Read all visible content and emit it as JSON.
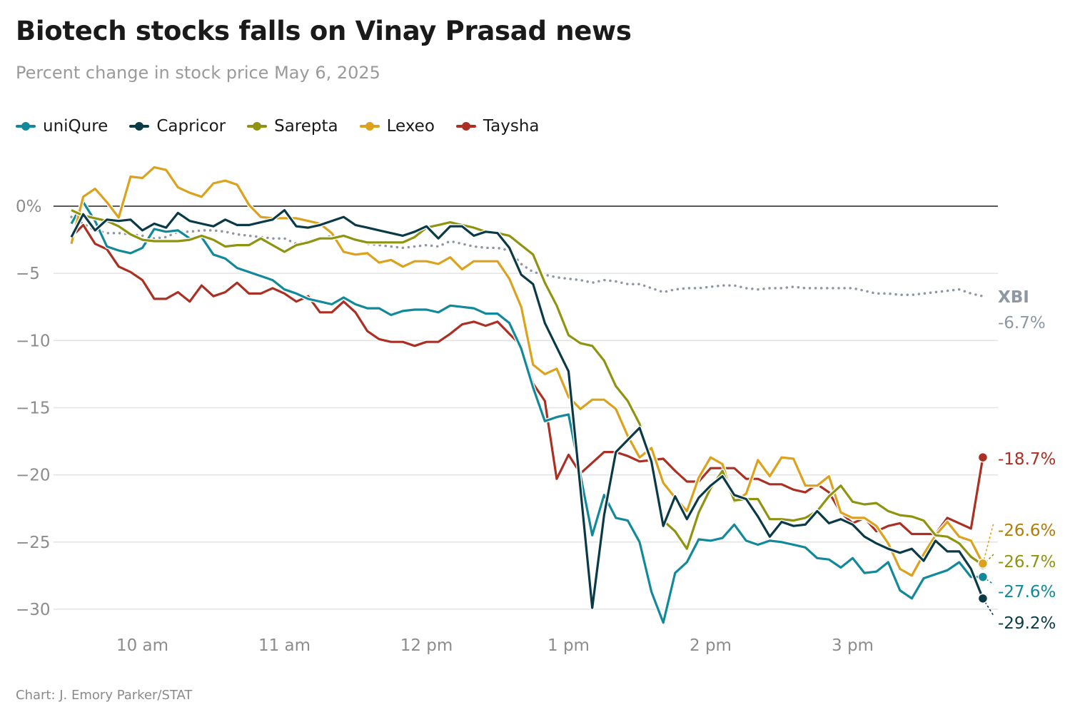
{
  "header": {
    "title": "Biotech stocks falls on Vinay Prasad news",
    "subtitle": "Percent change in stock price May 6, 2025"
  },
  "footer": {
    "credit": "Chart: J. Emory Parker/STAT"
  },
  "chart_data": {
    "type": "line",
    "title": "Biotech stocks falls on Vinay Prasad news",
    "subtitle": "Percent change in stock price May 6, 2025",
    "xlabel": "",
    "ylabel": "",
    "ylim": [
      -31,
      3
    ],
    "grid": "horizontal",
    "legend_placement": "top-left",
    "x_ticks": [
      {
        "time": "10:00",
        "label": "10 am"
      },
      {
        "time": "11:00",
        "label": "11 am"
      },
      {
        "time": "12:00",
        "label": "12 pm"
      },
      {
        "time": "13:00",
        "label": "1 pm"
      },
      {
        "time": "14:00",
        "label": "2 pm"
      },
      {
        "time": "15:00",
        "label": "3 pm"
      }
    ],
    "y_ticks": [
      {
        "value": 0,
        "label": "0%"
      },
      {
        "value": -5,
        "label": "−5"
      },
      {
        "value": -10,
        "label": "−10"
      },
      {
        "value": -15,
        "label": "−15"
      },
      {
        "value": -20,
        "label": "−20"
      },
      {
        "value": -25,
        "label": "−25"
      },
      {
        "value": -30,
        "label": "−30"
      }
    ],
    "x": [
      "9:30",
      "9:35",
      "9:40",
      "9:45",
      "9:50",
      "9:55",
      "10:00",
      "10:05",
      "10:10",
      "10:15",
      "10:20",
      "10:25",
      "10:30",
      "10:35",
      "10:40",
      "10:45",
      "10:50",
      "10:55",
      "11:00",
      "11:05",
      "11:10",
      "11:15",
      "11:20",
      "11:25",
      "11:30",
      "11:35",
      "11:40",
      "11:45",
      "11:50",
      "11:55",
      "12:00",
      "12:05",
      "12:10",
      "12:15",
      "12:20",
      "12:25",
      "12:30",
      "12:35",
      "12:40",
      "12:45",
      "12:50",
      "12:55",
      "13:00",
      "13:05",
      "13:10",
      "13:15",
      "13:20",
      "13:25",
      "13:30",
      "13:35",
      "13:40",
      "13:45",
      "13:50",
      "13:55",
      "14:00",
      "14:05",
      "14:10",
      "14:15",
      "14:20",
      "14:25",
      "14:30",
      "14:35",
      "14:40",
      "14:45",
      "14:50",
      "14:55",
      "15:00",
      "15:05",
      "15:10",
      "15:15",
      "15:20",
      "15:25",
      "15:30",
      "15:35",
      "15:40",
      "15:45",
      "15:50",
      "15:55"
    ],
    "series": [
      {
        "name": "XBI",
        "color": "#8e97a3",
        "style": "dotted",
        "in_legend": false,
        "end_label": "-6.7%",
        "values": [
          -0.8,
          -1.3,
          -1.8,
          -2.0,
          -2.0,
          -2.1,
          -2.2,
          -2.4,
          -2.3,
          -1.9,
          -1.9,
          -1.8,
          -1.8,
          -1.9,
          -2.1,
          -2.2,
          -2.3,
          -2.4,
          -2.4,
          -2.8,
          -2.6,
          -2.5,
          -2.2,
          -2.3,
          -2.5,
          -2.8,
          -2.9,
          -3.0,
          -3.1,
          -3.0,
          -2.9,
          -3.0,
          -2.6,
          -2.8,
          -3.0,
          -3.1,
          -3.1,
          -3.3,
          -4.3,
          -4.9,
          -5.1,
          -5.3,
          -5.4,
          -5.5,
          -5.7,
          -5.5,
          -5.6,
          -5.8,
          -5.8,
          -6.1,
          -6.4,
          -6.2,
          -6.1,
          -6.1,
          -6.0,
          -5.9,
          -5.9,
          -6.1,
          -6.2,
          -6.1,
          -6.1,
          -6.0,
          -6.1,
          -6.1,
          -6.1,
          -6.1,
          -6.1,
          -6.3,
          -6.5,
          -6.5,
          -6.6,
          -6.6,
          -6.5,
          -6.4,
          -6.3,
          -6.2,
          -6.5,
          -6.7
        ]
      },
      {
        "name": "uniQure",
        "color": "#12899b",
        "in_legend": true,
        "end_label": "-27.6%",
        "values": [
          -1.3,
          0.3,
          -1.1,
          -3.0,
          -3.3,
          -3.5,
          -3.1,
          -1.7,
          -1.9,
          -1.8,
          -2.4,
          -2.3,
          -3.6,
          -3.9,
          -4.6,
          -4.9,
          -5.2,
          -5.5,
          -6.2,
          -6.5,
          -6.9,
          -7.1,
          -7.3,
          -6.8,
          -7.3,
          -7.6,
          -7.6,
          -8.1,
          -7.8,
          -7.7,
          -7.7,
          -7.9,
          -7.4,
          -7.5,
          -7.6,
          -8.0,
          -8.0,
          -8.7,
          -10.6,
          -13.5,
          -16.0,
          -15.7,
          -15.5,
          -20.0,
          -24.5,
          -21.5,
          -23.2,
          -23.4,
          -25.0,
          -28.7,
          -31.0,
          -27.3,
          -26.5,
          -24.8,
          -24.9,
          -24.7,
          -23.7,
          -24.9,
          -25.2,
          -24.9,
          -25.0,
          -25.2,
          -25.4,
          -26.2,
          -26.3,
          -26.9,
          -26.2,
          -27.3,
          -27.2,
          -26.5,
          -28.6,
          -29.2,
          -27.7,
          -27.4,
          -27.1,
          -26.5,
          -27.6,
          -27.6
        ]
      },
      {
        "name": "Capricor",
        "color": "#0b3a47",
        "in_legend": true,
        "end_label": "-29.2%",
        "values": [
          -2.3,
          -0.6,
          -1.8,
          -1.0,
          -1.1,
          -1.0,
          -1.8,
          -1.3,
          -1.6,
          -0.5,
          -1.1,
          -1.3,
          -1.5,
          -1.0,
          -1.4,
          -1.4,
          -1.2,
          -1.0,
          -0.3,
          -1.5,
          -1.6,
          -1.4,
          -1.1,
          -0.8,
          -1.4,
          -1.6,
          -1.8,
          -2.0,
          -2.2,
          -1.9,
          -1.5,
          -2.4,
          -1.5,
          -1.5,
          -2.2,
          -1.9,
          -2.0,
          -3.1,
          -5.1,
          -5.8,
          -8.7,
          -10.5,
          -12.3,
          -21.0,
          -29.9,
          -23.0,
          -18.3,
          -17.4,
          -16.5,
          -19.0,
          -23.8,
          -21.6,
          -23.3,
          -21.7,
          -20.8,
          -20.1,
          -21.5,
          -21.8,
          -23.1,
          -24.6,
          -23.5,
          -23.8,
          -23.7,
          -22.7,
          -23.6,
          -23.3,
          -23.7,
          -24.6,
          -25.1,
          -25.5,
          -25.8,
          -25.5,
          -26.4,
          -24.9,
          -25.7,
          -25.7,
          -27.0,
          -29.2
        ]
      },
      {
        "name": "Sarepta",
        "color": "#8e9410",
        "in_legend": true,
        "end_label": "-26.7%",
        "values": [
          -0.3,
          -0.7,
          -0.9,
          -1.1,
          -1.5,
          -2.1,
          -2.5,
          -2.6,
          -2.6,
          -2.6,
          -2.5,
          -2.2,
          -2.5,
          -3.0,
          -2.9,
          -2.9,
          -2.4,
          -2.9,
          -3.4,
          -2.9,
          -2.7,
          -2.4,
          -2.4,
          -2.2,
          -2.5,
          -2.7,
          -2.7,
          -2.7,
          -2.7,
          -2.3,
          -1.6,
          -1.4,
          -1.2,
          -1.4,
          -1.6,
          -1.9,
          -2.0,
          -2.2,
          -2.9,
          -3.6,
          -5.7,
          -7.4,
          -9.6,
          -10.2,
          -10.4,
          -11.5,
          -13.4,
          -14.5,
          -16.2,
          -19.3,
          -23.4,
          -24.2,
          -25.5,
          -22.8,
          -21.0,
          -19.7,
          -21.9,
          -21.8,
          -21.8,
          -23.3,
          -23.3,
          -23.4,
          -23.2,
          -22.7,
          -21.6,
          -20.8,
          -22.0,
          -22.2,
          -22.1,
          -22.7,
          -23.0,
          -23.1,
          -23.4,
          -24.5,
          -24.6,
          -25.1,
          -26.1,
          -26.7
        ]
      },
      {
        "name": "Lexeo",
        "color": "#dca11d",
        "label_color": "#b27c0a",
        "in_legend": true,
        "end_label": "-26.6%",
        "values": [
          -2.8,
          0.7,
          1.3,
          0.3,
          -0.85,
          2.2,
          2.1,
          2.9,
          2.7,
          1.4,
          1.0,
          0.7,
          1.7,
          1.9,
          1.6,
          0.1,
          -0.8,
          -0.9,
          -0.9,
          -0.9,
          -1.1,
          -1.3,
          -2.0,
          -3.4,
          -3.6,
          -3.5,
          -4.2,
          -4.0,
          -4.5,
          -4.1,
          -4.1,
          -4.3,
          -3.8,
          -4.7,
          -4.1,
          -4.1,
          -4.1,
          -5.4,
          -7.5,
          -11.8,
          -12.5,
          -12.1,
          -14.2,
          -15.1,
          -14.4,
          -14.4,
          -15.1,
          -17.1,
          -18.7,
          -18.0,
          -20.6,
          -21.7,
          -22.7,
          -20.2,
          -18.7,
          -19.2,
          -22.0,
          -21.4,
          -18.9,
          -20.1,
          -18.7,
          -18.8,
          -20.8,
          -20.8,
          -20.1,
          -22.8,
          -23.2,
          -23.2,
          -23.8,
          -25.1,
          -27.0,
          -27.5,
          -25.9,
          -24.5,
          -23.5,
          -24.6,
          -24.9,
          -26.6
        ]
      },
      {
        "name": "Taysha",
        "color": "#ab2f22",
        "in_legend": true,
        "end_label": "-18.7%",
        "values": [
          -2.3,
          -1.4,
          -2.8,
          -3.2,
          -4.5,
          -4.9,
          -5.5,
          -6.9,
          -6.9,
          -6.4,
          -7.1,
          -5.9,
          -6.7,
          -6.4,
          -5.7,
          -6.5,
          -6.5,
          -6.1,
          -6.5,
          -7.1,
          -6.7,
          -7.9,
          -7.9,
          -7.1,
          -7.9,
          -9.3,
          -9.9,
          -10.1,
          -10.1,
          -10.4,
          -10.1,
          -10.1,
          -9.5,
          -8.8,
          -8.6,
          -8.9,
          -8.6,
          -9.5,
          -10.4,
          -13.2,
          -14.5,
          -20.3,
          -18.5,
          -19.9,
          -19.1,
          -18.3,
          -18.3,
          -18.6,
          -19.0,
          -18.9,
          -18.8,
          -19.7,
          -20.5,
          -20.5,
          -19.5,
          -19.5,
          -19.5,
          -20.3,
          -20.3,
          -20.7,
          -20.7,
          -21.1,
          -21.3,
          -20.7,
          -21.3,
          -22.8,
          -23.6,
          -23.2,
          -24.2,
          -23.8,
          -23.6,
          -24.4,
          -24.4,
          -24.4,
          -23.2,
          -23.6,
          -24.0,
          -18.7
        ]
      }
    ]
  }
}
